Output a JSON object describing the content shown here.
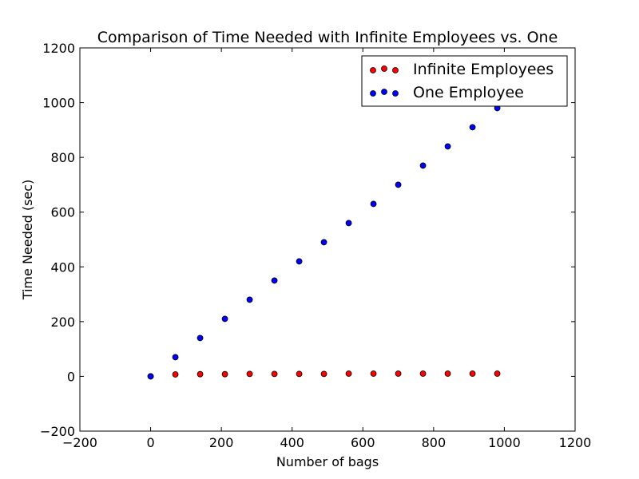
{
  "chart_data": {
    "type": "scatter",
    "title": "Comparison of Time Needed with Infinite Employees vs. One",
    "xlabel": "Number of bags",
    "ylabel": "Time Needed (sec)",
    "xlim": [
      -200,
      1200
    ],
    "ylim": [
      -200,
      1200
    ],
    "xticks": [
      -200,
      0,
      200,
      400,
      600,
      800,
      1000,
      1200
    ],
    "yticks": [
      -200,
      0,
      200,
      400,
      600,
      800,
      1000,
      1200
    ],
    "grid": false,
    "legend_position": "top-right",
    "series": [
      {
        "name": "Infinite Employees",
        "color": "#ff0000",
        "x": [
          0,
          70,
          140,
          210,
          280,
          350,
          420,
          490,
          560,
          630,
          700,
          770,
          840,
          910,
          980
        ],
        "y": [
          0,
          7,
          8,
          8,
          9,
          9,
          9,
          9,
          10,
          10,
          10,
          10,
          10,
          10,
          10
        ]
      },
      {
        "name": "One Employee",
        "color": "#0000ff",
        "x": [
          0,
          70,
          140,
          210,
          280,
          350,
          420,
          490,
          560,
          630,
          700,
          770,
          840,
          910,
          980
        ],
        "y": [
          0,
          70,
          140,
          210,
          280,
          350,
          420,
          490,
          560,
          630,
          700,
          770,
          840,
          910,
          980
        ]
      }
    ]
  }
}
